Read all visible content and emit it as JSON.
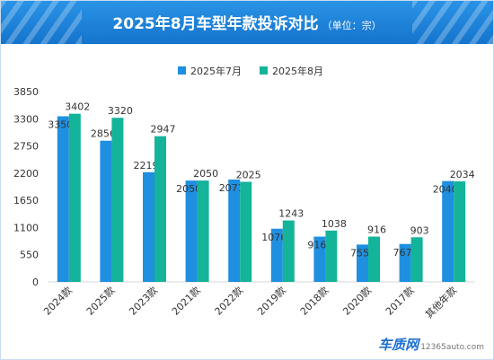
{
  "title": "2025年8月车型年款投诉对比",
  "subtitle": "（单位：宗）",
  "colors": {
    "title_bg": "#1f82dc",
    "jul": "#1f8fe0",
    "aug": "#14b49a"
  },
  "watermark": {
    "logo": "车质网",
    "url": "12365auto.com"
  },
  "chart_data": {
    "type": "bar",
    "categories": [
      "2024款",
      "2025款",
      "2023款",
      "2021款",
      "2022款",
      "2019款",
      "2018款",
      "2020款",
      "2017款",
      "其他年款"
    ],
    "series": [
      {
        "name": "2025年7月",
        "values": [
          3350,
          2856,
          2219,
          2050,
          2071,
          1076,
          916,
          755,
          767,
          2040
        ]
      },
      {
        "name": "2025年8月",
        "values": [
          3402,
          3320,
          2947,
          2050,
          2025,
          1243,
          1038,
          916,
          903,
          2034
        ]
      }
    ],
    "yticks": [
      0,
      550,
      1100,
      1650,
      2200,
      2750,
      3300,
      3850
    ],
    "ylim": [
      0,
      3850
    ],
    "legend_position": "top-center",
    "grid": false
  }
}
